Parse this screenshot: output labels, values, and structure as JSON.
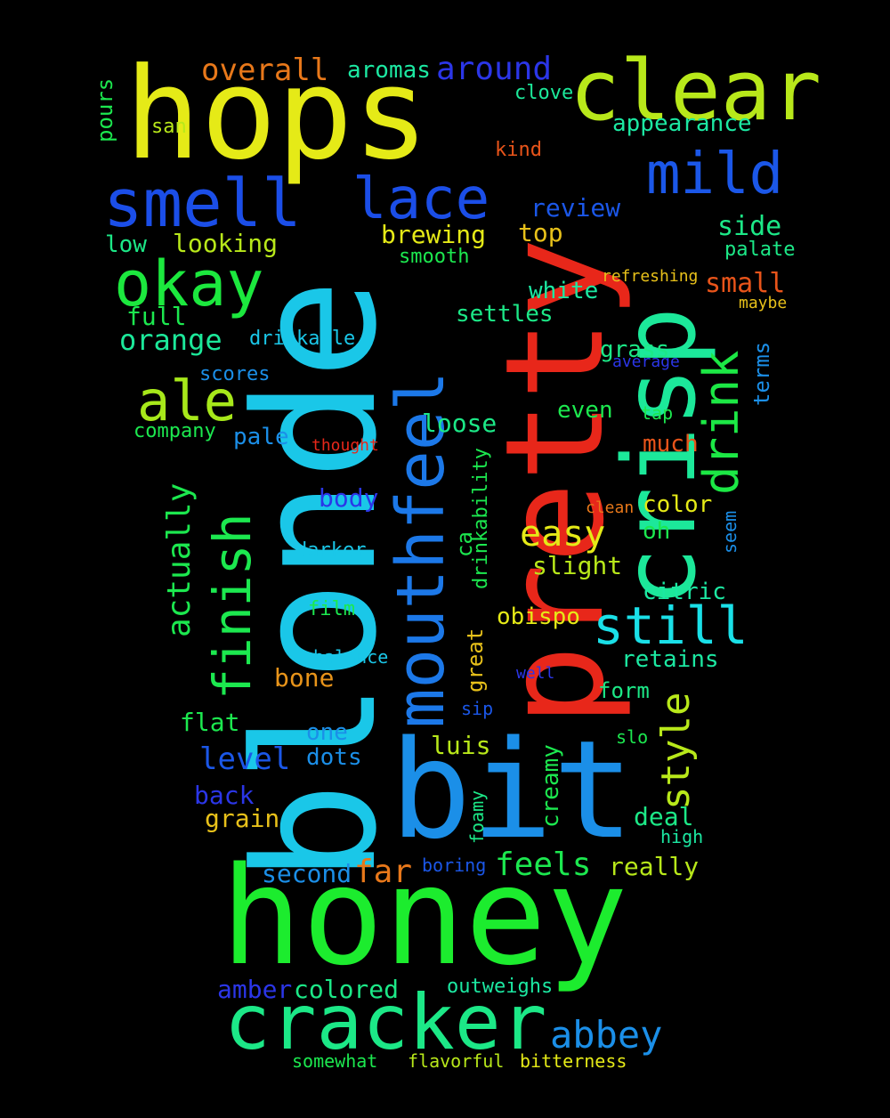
{
  "background": "#000000",
  "words": [
    {
      "text": "blonde",
      "color": "#1ac7e8"
    },
    {
      "text": "pretty",
      "color": "#e8271a"
    },
    {
      "text": "hops",
      "color": "#e5ea17"
    },
    {
      "text": "honey",
      "color": "#1cec2e"
    },
    {
      "text": "bit",
      "color": "#1b8fe8"
    },
    {
      "text": "crisp",
      "color": "#1ce89a"
    },
    {
      "text": "clear",
      "color": "#b8e81a"
    },
    {
      "text": "cracker",
      "color": "#1ce887"
    },
    {
      "text": "mouthfeel",
      "color": "#1c78e8"
    },
    {
      "text": "smell",
      "color": "#1b4ee8"
    },
    {
      "text": "lace",
      "color": "#1b4ee8"
    },
    {
      "text": "mild",
      "color": "#1b57e8"
    },
    {
      "text": "okay",
      "color": "#1ce83e"
    },
    {
      "text": "finish",
      "color": "#1ce84f"
    },
    {
      "text": "ale",
      "color": "#a7e81a"
    },
    {
      "text": "drink",
      "color": "#1ce845"
    },
    {
      "text": "still",
      "color": "#1ae0e8"
    },
    {
      "text": "style",
      "color": "#b8e81a"
    },
    {
      "text": "abbey",
      "color": "#1b8fe8"
    },
    {
      "text": "overall",
      "color": "#e8781a"
    },
    {
      "text": "around",
      "color": "#2b36e8"
    },
    {
      "text": "aromas",
      "color": "#1ce8a2"
    },
    {
      "text": "easy",
      "color": "#e5ea17"
    },
    {
      "text": "feels",
      "color": "#1ce84f"
    },
    {
      "text": "far",
      "color": "#e8781a"
    },
    {
      "text": "actually",
      "color": "#1ce84f"
    },
    {
      "text": "orange",
      "color": "#1ce89a"
    },
    {
      "text": "brewing",
      "color": "#e5ea17"
    },
    {
      "text": "level",
      "color": "#1b57e8"
    },
    {
      "text": "side",
      "color": "#1ce887"
    },
    {
      "text": "small",
      "color": "#e8541a"
    },
    {
      "text": "pours",
      "color": "#1ce84f"
    },
    {
      "text": "clove",
      "color": "#1ce89a"
    },
    {
      "text": "appearance",
      "color": "#1ce8a2"
    },
    {
      "text": "san",
      "color": "#b8e81a"
    },
    {
      "text": "kind",
      "color": "#e8541a"
    },
    {
      "text": "review",
      "color": "#1b57e8"
    },
    {
      "text": "top",
      "color": "#e8c11a"
    },
    {
      "text": "low",
      "color": "#1ce887"
    },
    {
      "text": "looking",
      "color": "#b8e81a"
    },
    {
      "text": "smooth",
      "color": "#1ce84f"
    },
    {
      "text": "palate",
      "color": "#1ce887"
    },
    {
      "text": "refreshing",
      "color": "#e8c11a"
    },
    {
      "text": "white",
      "color": "#1ce8a2"
    },
    {
      "text": "maybe",
      "color": "#e8c11a"
    },
    {
      "text": "full",
      "color": "#1ce84f"
    },
    {
      "text": "settles",
      "color": "#1ce887"
    },
    {
      "text": "drinkable",
      "color": "#1ac7e8"
    },
    {
      "text": "grass",
      "color": "#1ce887"
    },
    {
      "text": "average",
      "color": "#2b36e8"
    },
    {
      "text": "terms",
      "color": "#1b8fe8"
    },
    {
      "text": "scores",
      "color": "#1b8fe8"
    },
    {
      "text": "even",
      "color": "#1ce84f"
    },
    {
      "text": "tap",
      "color": "#1ce84f"
    },
    {
      "text": "loose",
      "color": "#1ce887"
    },
    {
      "text": "company",
      "color": "#1ce84f"
    },
    {
      "text": "pale",
      "color": "#1b8fe8"
    },
    {
      "text": "thought",
      "color": "#e8271a"
    },
    {
      "text": "much",
      "color": "#e8541a"
    },
    {
      "text": "drinkability",
      "color": "#1ce84f"
    },
    {
      "text": "body",
      "color": "#2b36e8"
    },
    {
      "text": "clean",
      "color": "#e8781a"
    },
    {
      "text": "color",
      "color": "#e5ea17"
    },
    {
      "text": "seem",
      "color": "#1b8fe8"
    },
    {
      "text": "oh",
      "color": "#1ce84f"
    },
    {
      "text": "darker",
      "color": "#1ac7e8"
    },
    {
      "text": "ca",
      "color": "#1ce84f"
    },
    {
      "text": "slight",
      "color": "#b8e81a"
    },
    {
      "text": "citric",
      "color": "#1ce8a2"
    },
    {
      "text": "film",
      "color": "#1ce84f"
    },
    {
      "text": "obispo",
      "color": "#e5ea17"
    },
    {
      "text": "great",
      "color": "#e8c11a"
    },
    {
      "text": "balance",
      "color": "#1ac7e8"
    },
    {
      "text": "retains",
      "color": "#1ce8a2"
    },
    {
      "text": "bone",
      "color": "#e8941a"
    },
    {
      "text": "well",
      "color": "#2b36e8"
    },
    {
      "text": "form",
      "color": "#1ce887"
    },
    {
      "text": "sip",
      "color": "#1b57e8"
    },
    {
      "text": "flat",
      "color": "#1ce84f"
    },
    {
      "text": "one",
      "color": "#1b8fe8"
    },
    {
      "text": "luis",
      "color": "#b8e81a"
    },
    {
      "text": "slo",
      "color": "#1ce84f"
    },
    {
      "text": "dots",
      "color": "#1b8fe8"
    },
    {
      "text": "creamy",
      "color": "#1ce84f"
    },
    {
      "text": "back",
      "color": "#2b36e8"
    },
    {
      "text": "deal",
      "color": "#1ce887"
    },
    {
      "text": "grain",
      "color": "#e8c11a"
    },
    {
      "text": "foamy",
      "color": "#1ce887"
    },
    {
      "text": "high",
      "color": "#1ce8a2"
    },
    {
      "text": "second",
      "color": "#1b8fe8"
    },
    {
      "text": "boring",
      "color": "#1b57e8"
    },
    {
      "text": "really",
      "color": "#b8e81a"
    },
    {
      "text": "amber",
      "color": "#2b36e8"
    },
    {
      "text": "colored",
      "color": "#1ce887"
    },
    {
      "text": "outweighs",
      "color": "#1ce8a2"
    },
    {
      "text": "somewhat",
      "color": "#1ce84f"
    },
    {
      "text": "flavorful",
      "color": "#b8e81a"
    },
    {
      "text": "bitterness",
      "color": "#e5ea17"
    }
  ]
}
